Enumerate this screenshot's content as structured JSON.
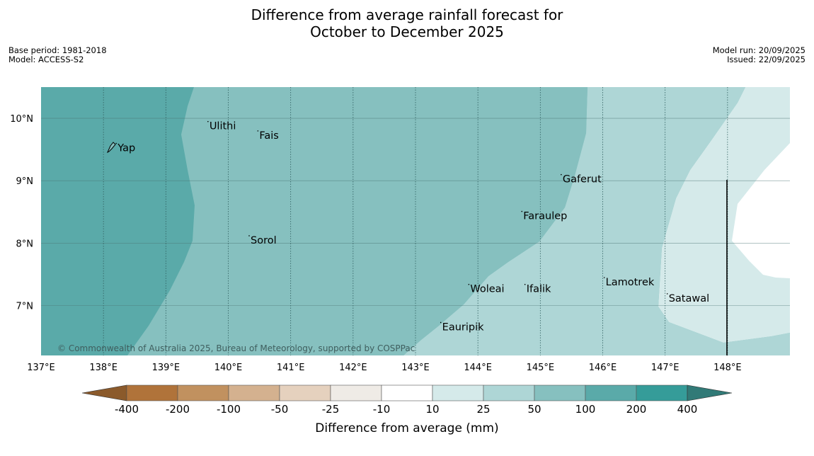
{
  "title_line1": "Difference from average rainfall forecast for",
  "title_line2": "October to December 2025",
  "base_period": "Base period: 1981-2018",
  "model": "Model: ACCESS-S2",
  "model_run": "Model run: 20/09/2025",
  "issued": "Issued: 22/09/2025",
  "copyright": "© Commonwealth of Australia 2025, Bureau of Meteorology, supported by COSPPac",
  "colors": {
    "gt200": "#5aaaa9",
    "100_200": "#86c0bf",
    "50_100": "#aed6d6",
    "25_50": "#d5eaea",
    "lt10": "#ffffff",
    "line": "#000000"
  },
  "map": {
    "lon_range": [
      137,
      149
    ],
    "lat_range": [
      6.2,
      10.5
    ],
    "lon_ticks": [
      "137°E",
      "138°E",
      "139°E",
      "140°E",
      "141°E",
      "142°E",
      "143°E",
      "144°E",
      "145°E",
      "146°E",
      "147°E",
      "148°E"
    ],
    "lat_ticks": [
      "10°N",
      "9°N",
      "8°N",
      "7°N"
    ],
    "lon_values": [
      137,
      138,
      139,
      140,
      141,
      142,
      143,
      144,
      145,
      146,
      147,
      148
    ],
    "lat_values": [
      10,
      9,
      8,
      7
    ],
    "places": [
      {
        "name": "Yap",
        "lon": 138.25,
        "lat": 9.53
      },
      {
        "name": "Ulithi",
        "lon": 139.72,
        "lat": 9.88
      },
      {
        "name": "Fais",
        "lon": 140.52,
        "lat": 9.73
      },
      {
        "name": "Gaferut",
        "lon": 145.38,
        "lat": 9.03
      },
      {
        "name": "Faraulep",
        "lon": 144.75,
        "lat": 8.44
      },
      {
        "name": "Sorol",
        "lon": 140.38,
        "lat": 8.05
      },
      {
        "name": "Lamotrek",
        "lon": 146.07,
        "lat": 7.38
      },
      {
        "name": "Woleai",
        "lon": 143.9,
        "lat": 7.27
      },
      {
        "name": "Ifalik",
        "lon": 144.8,
        "lat": 7.27
      },
      {
        "name": "Satawal",
        "lon": 147.08,
        "lat": 7.12
      },
      {
        "name": "Eauripik",
        "lon": 143.45,
        "lat": 6.66
      }
    ]
  },
  "colorbar": {
    "labels": [
      "-400",
      "-200",
      "-100",
      "-50",
      "-25",
      "-10",
      "10",
      "25",
      "50",
      "100",
      "200",
      "400"
    ],
    "colors": [
      "#b0733a",
      "#c1915f",
      "#d4b18f",
      "#e5d1be",
      "#efebe6",
      "#ffffff",
      "#d5eaea",
      "#aed6d6",
      "#86c0bf",
      "#5aaaa9",
      "#359c99"
    ],
    "low_color": "#8b5a2b",
    "high_color": "#317a77",
    "title": "Difference from average (mm)"
  }
}
